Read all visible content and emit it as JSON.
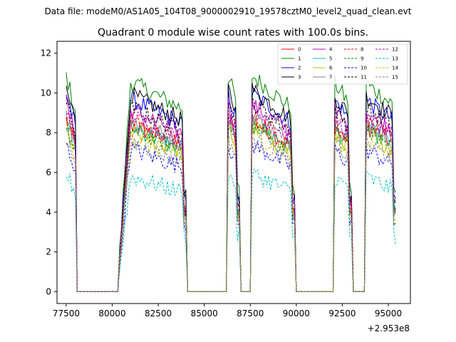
{
  "suptitle": "Data file: modeM0/AS1A05_104T08_9000002910_19578cztM0_level2_quad_clean.evt",
  "chart_data": {
    "type": "line",
    "title": "Quadrant 0 module wise count rates with 100.0s bins.",
    "xlabel": "",
    "ylabel": "",
    "x_offset_label": "+2.953e8",
    "xlim": [
      77000,
      96200
    ],
    "ylim": [
      -0.6,
      12.6
    ],
    "xticks": [
      77500,
      80000,
      82500,
      85000,
      87500,
      90000,
      92500,
      95000
    ],
    "yticks": [
      0,
      2,
      4,
      6,
      8,
      10,
      12
    ],
    "legend_position": "top-right",
    "gti_segments": [
      [
        77500,
        78000
      ],
      [
        80400,
        84000
      ],
      [
        86300,
        86900
      ],
      [
        87600,
        89900
      ],
      [
        92100,
        93000
      ],
      [
        93800,
        95400
      ]
    ],
    "bin_seconds": 100,
    "series": [
      {
        "name": "0",
        "color": "#ff0000",
        "style": "solid",
        "level": 7.7
      },
      {
        "name": "1",
        "color": "#008000",
        "style": "solid",
        "level": 9.7
      },
      {
        "name": "2",
        "color": "#0000ff",
        "style": "solid",
        "level": 8.9
      },
      {
        "name": "3",
        "color": "#000000",
        "style": "solid",
        "level": 9.1
      },
      {
        "name": "4",
        "color": "#bf00bf",
        "style": "solid",
        "level": 8.4
      },
      {
        "name": "5",
        "color": "#00bfbf",
        "style": "solid",
        "level": 7.6
      },
      {
        "name": "6",
        "color": "#bfbf00",
        "style": "solid",
        "level": 7.4
      },
      {
        "name": "7",
        "color": "#808080",
        "style": "solid",
        "level": 7.9
      },
      {
        "name": "8",
        "color": "#ff0000",
        "style": "dashed",
        "level": 7.9
      },
      {
        "name": "9",
        "color": "#008000",
        "style": "dashed",
        "level": 7.5
      },
      {
        "name": "10",
        "color": "#0000ff",
        "style": "dashed",
        "level": 6.6
      },
      {
        "name": "11",
        "color": "#000000",
        "style": "dashed",
        "level": 8.5
      },
      {
        "name": "12",
        "color": "#bf00bf",
        "style": "dashed",
        "level": 8.1
      },
      {
        "name": "13",
        "color": "#00bfbf",
        "style": "dashed",
        "level": 5.3
      },
      {
        "name": "14",
        "color": "#bfbf00",
        "style": "dashed",
        "level": 7.1
      },
      {
        "name": "15",
        "color": "#808080",
        "style": "dashed",
        "level": 6.9
      }
    ]
  }
}
